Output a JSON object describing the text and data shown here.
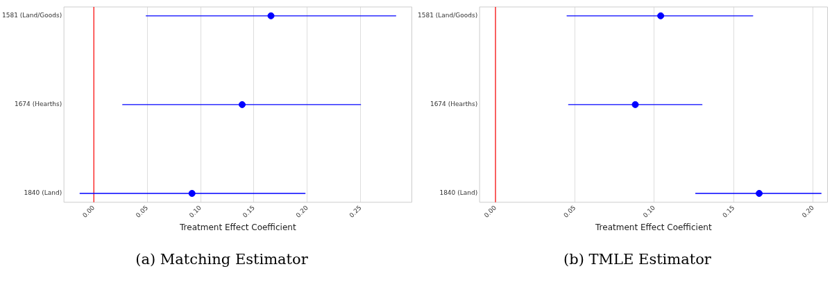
{
  "chart_data": [
    {
      "type": "scatter",
      "orientation": "horizontal",
      "title": "(a) Matching Estimator",
      "xlabel": "Treatment Effect Coefficient",
      "categories": [
        "1581 (Land/Goods)",
        "1674 (Hearths)",
        "1840 (Land)"
      ],
      "series": [
        {
          "color": "#0000ff",
          "values": [
            0.166,
            0.139,
            0.092
          ],
          "errors": [
            [
              0.049,
              0.283
            ],
            [
              0.027,
              0.25
            ],
            [
              -0.013,
              0.198
            ]
          ]
        }
      ],
      "xlim": [
        -0.028,
        0.298
      ],
      "xticks": [
        {
          "value": 0,
          "label": "0.00"
        },
        0.05,
        {
          "value": 0.1,
          "label": "0.10"
        },
        0.15,
        {
          "value": 0.2,
          "label": "0.20"
        },
        0.25
      ],
      "ref_lines": [
        {
          "axis": "x",
          "value": 0,
          "color": "#ff0000"
        }
      ],
      "grid": "x",
      "marker": "circle",
      "legend": false
    },
    {
      "type": "scatter",
      "orientation": "horizontal",
      "title": "(b) TMLE Estimator",
      "xlabel": "Treatment Effect Coefficient",
      "categories": [
        "1581 (Land/Goods)",
        "1674 (Hearths)",
        "1840 (Land)"
      ],
      "series": [
        {
          "color": "#0000ff",
          "values": [
            0.104,
            0.088,
            0.166
          ],
          "errors": [
            [
              0.045,
              0.162
            ],
            [
              0.046,
              0.13
            ],
            [
              0.126,
              0.205
            ]
          ]
        }
      ],
      "xlim": [
        -0.01,
        0.209
      ],
      "xticks": [
        {
          "value": 0,
          "label": "0.00"
        },
        0.05,
        {
          "value": 0.1,
          "label": "0.10"
        },
        0.15,
        {
          "value": 0.2,
          "label": "0.20"
        }
      ],
      "ref_lines": [
        {
          "axis": "x",
          "value": 0,
          "color": "#ff0000"
        }
      ],
      "grid": "x",
      "marker": "circle",
      "legend": false
    }
  ]
}
